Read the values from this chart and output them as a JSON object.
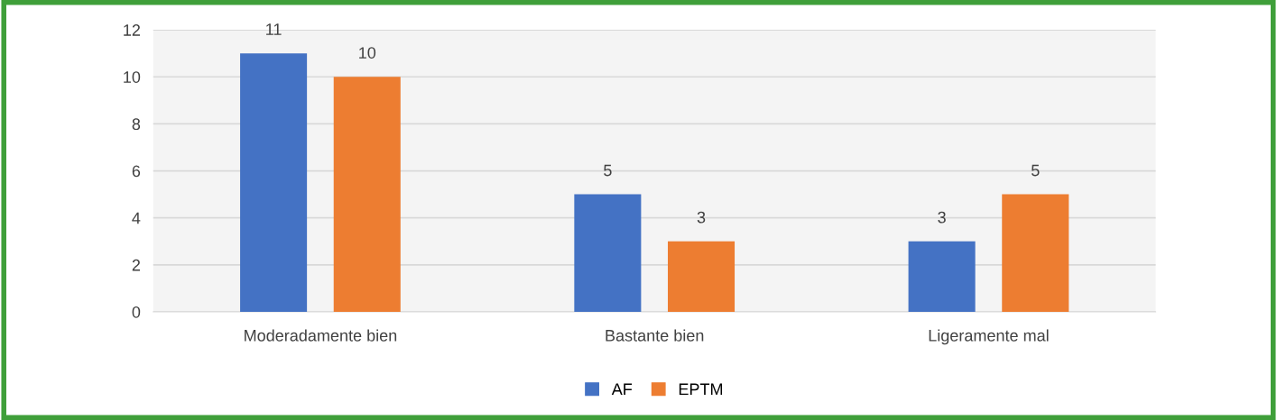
{
  "chart_data": {
    "type": "bar",
    "categories": [
      "Moderadamente bien",
      "Bastante bien",
      "Ligeramente mal"
    ],
    "series": [
      {
        "name": "AF",
        "color": "#4472c4",
        "values": [
          11,
          5,
          3
        ]
      },
      {
        "name": "EPTM",
        "color": "#ed7d31",
        "values": [
          10,
          3,
          5
        ]
      }
    ],
    "ylim": [
      0,
      12
    ],
    "yticks": [
      0,
      2,
      4,
      6,
      8,
      10,
      12
    ],
    "grid": "y",
    "legend": "bottom",
    "data_labels": true
  }
}
